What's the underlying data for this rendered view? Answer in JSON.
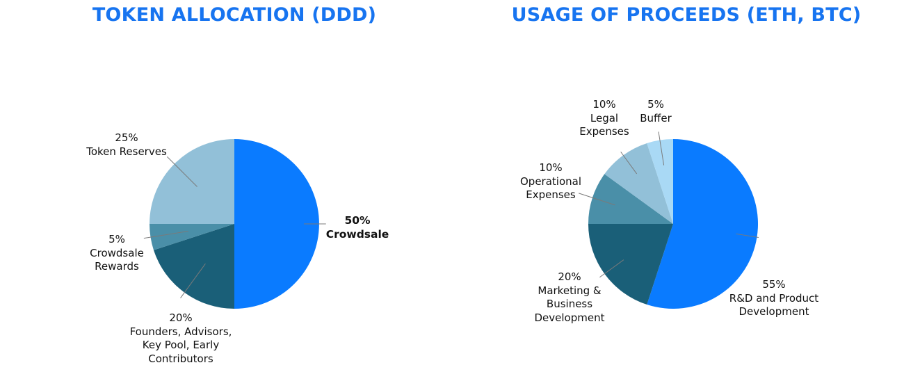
{
  "colors": {
    "title": "#1774f0"
  },
  "chart_data": [
    {
      "type": "pie",
      "title": "TOKEN ALLOCATION (DDD)",
      "start": "12 o'clock",
      "direction": "clockwise",
      "slices": [
        {
          "percent_label": "50%",
          "name_lines": [
            "Crowdsale"
          ],
          "value": 50,
          "color": "#0a7bff",
          "emphasis": true
        },
        {
          "percent_label": "20%",
          "name_lines": [
            "Founders, Advisors,",
            "Key Pool, Early",
            "Contributors"
          ],
          "value": 20,
          "color": "#1a5f78"
        },
        {
          "percent_label": "5%",
          "name_lines": [
            "Crowdsale",
            "Rewards"
          ],
          "value": 5,
          "color": "#4a8fa8"
        },
        {
          "percent_label": "25%",
          "name_lines": [
            "Token Reserves"
          ],
          "value": 25,
          "color": "#92c0d8"
        }
      ]
    },
    {
      "type": "pie",
      "title": "USAGE OF PROCEEDS (ETH, BTC)",
      "start": "12 o'clock",
      "direction": "clockwise",
      "slices": [
        {
          "percent_label": "55%",
          "name_lines": [
            "R&D and Product",
            "Development"
          ],
          "value": 55,
          "color": "#0a7bff"
        },
        {
          "percent_label": "20%",
          "name_lines": [
            "Marketing &",
            "Business",
            "Development"
          ],
          "value": 20,
          "color": "#1a5f78"
        },
        {
          "percent_label": "10%",
          "name_lines": [
            "Operational",
            "Expenses"
          ],
          "value": 10,
          "color": "#4a8fa8"
        },
        {
          "percent_label": "10%",
          "name_lines": [
            "Legal",
            "Expenses"
          ],
          "value": 10,
          "color": "#92c0d8"
        },
        {
          "percent_label": "5%",
          "name_lines": [
            "Buffer"
          ],
          "value": 5,
          "color": "#a9d9f5"
        }
      ]
    }
  ]
}
